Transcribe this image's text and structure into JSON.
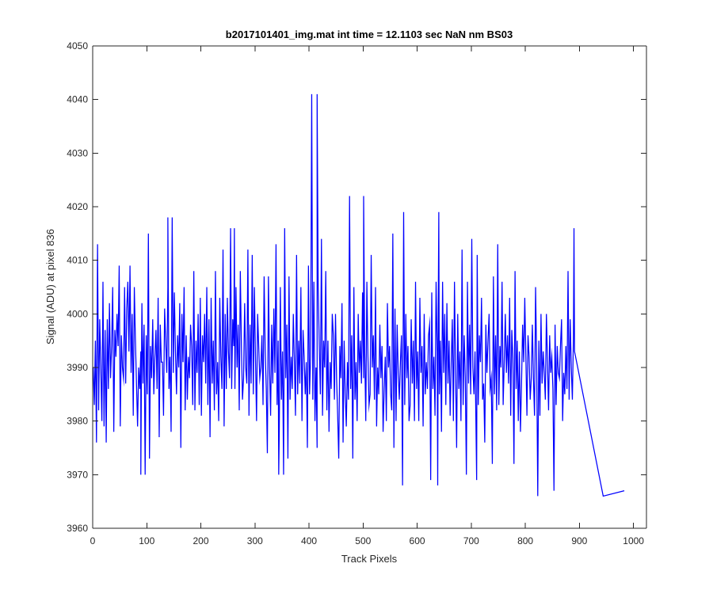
{
  "chart_data": {
    "type": "line",
    "title": "b2017101401_img.mat int time = 12.1103 sec  NaN nm BS03",
    "xlabel": "Track Pixels",
    "ylabel": "Signal (ADU) at pixel 836",
    "xlim": [
      0,
      1024
    ],
    "ylim": [
      3960,
      4050
    ],
    "xticks": [
      0,
      100,
      200,
      300,
      400,
      500,
      600,
      700,
      800,
      900,
      1000
    ],
    "yticks": [
      3960,
      3970,
      3980,
      3990,
      4000,
      4010,
      4020,
      4030,
      4040,
      4050
    ],
    "grid": false,
    "legend": "none",
    "series": [
      {
        "color": "#0000ff",
        "x_start": 1,
        "x_step": 2,
        "values": [
          3990,
          3983,
          3995,
          3976,
          4013,
          3982,
          3999,
          3990,
          3980,
          4006,
          3979,
          3997,
          3976,
          3999,
          3986,
          4002,
          3988,
          3994,
          4005,
          3978,
          3997,
          3992,
          4000,
          3994,
          4009,
          3979,
          3996,
          3990,
          3988,
          4005,
          3987,
          4001,
          4006,
          3993,
          4009,
          3989,
          4000,
          3981,
          4005,
          3995,
          3987,
          3979,
          3990,
          3986,
          3993,
          4002,
          3987,
          3998,
          3970,
          3996,
          3985,
          4015,
          3973,
          3994,
          3988,
          3999,
          3985,
          3992,
          3997,
          3986,
          4003,
          3977,
          3998,
          3991,
          3991,
          3981,
          4001,
          3995,
          3989,
          4005,
          3986,
          3992,
          3978,
          4018,
          3989,
          4004,
          3993,
          3985,
          3996,
          3990,
          4002,
          3975,
          4000,
          3991,
          4005,
          3982,
          3996,
          3984,
          3992,
          3988,
          3998,
          3994,
          3983,
          4008,
          3982,
          3995,
          3989,
          4000,
          3983,
          4003,
          3981,
          3996,
          3991,
          4000,
          3987,
          4005,
          3983,
          3999,
          3977,
          4003,
          3987,
          3995,
          3982,
          4008,
          3985,
          3991,
          3980,
          4003,
          3992,
          3986,
          4012,
          3979,
          4000,
          3986,
          4003,
          3993,
          3988,
          4016,
          3986,
          3999,
          3994,
          3986,
          4005,
          3990,
          3998,
          3982,
          4008,
          3994,
          3984,
          3988,
          4002,
          3990,
          3987,
          4012,
          3981,
          3998,
          3987,
          4011,
          3985,
          4005,
          3992,
          3980,
          4000,
          3994,
          3988,
          3990,
          3996,
          3983,
          4007,
          3993,
          3986,
          3974,
          4007,
          3990,
          3981,
          3998,
          3987,
          4001,
          3989,
          4013,
          3983,
          3995,
          3978,
          4005,
          3984,
          3993,
          3970,
          4016,
          3988,
          3998,
          3973,
          4007,
          3984,
          3992,
          3986,
          4000,
          3991,
          3981,
          4011,
          3985,
          3995,
          3987,
          4005,
          3980,
          3997,
          3992,
          3985,
          3991,
          3975,
          4009,
          3985,
          3992,
          4041,
          3984,
          4006,
          3980,
          3990,
          3975,
          4005,
          3994,
          3985,
          4014,
          3981,
          3995,
          3990,
          4008,
          3982,
          3995,
          3978,
          3991,
          3986,
          4000,
          3996,
          3984,
          4000,
          3988,
          3981,
          3973,
          3994,
          3988,
          4002,
          3976,
          3995,
          3985,
          3979,
          3991,
          3984,
          4022,
          3986,
          3996,
          3973,
          4005,
          3984,
          3991,
          3980,
          4000,
          3989,
          3995,
          3987,
          4004,
          3988,
          3993,
          3980,
          4006,
          3992,
          3983,
          3985,
          4011,
          3990,
          3996,
          3984,
          4005,
          3979,
          3990,
          3985,
          3998,
          3988,
          3994,
          3978,
          3986,
          3992,
          3980,
          4002,
          3990,
          3994,
          3985,
          3982,
          4015,
          3975,
          4001,
          3980,
          3998,
          3989,
          3984,
          3991,
          3996,
          3968,
          4019,
          3983,
          4000,
          3988,
          3994,
          3980,
          3983,
          3999,
          3987,
          3995,
          3980,
          4006,
          3986,
          3993,
          3980,
          4003,
          3989,
          3994,
          3979,
          4000,
          3985,
          3991,
          3986,
          3996,
          3998,
          3969,
          4004,
          3986,
          3992,
          3981,
          4006,
          3993,
          4001,
          3985,
          3995,
          3978,
          4006,
          3989,
          4000,
          3983,
          4002,
          3987,
          3995,
          3981,
          3991,
          3999,
          3980,
          4006,
          3989,
          3975,
          4000,
          3986,
          3993,
          3980,
          4012,
          3983,
          3996,
          3988,
          3970,
          4006,
          3987,
          3998,
          3985,
          4014,
          3990,
          3985,
          3993,
          3977,
          4011,
          3983,
          3996,
          3991,
          4003,
          3984,
          3987,
          3976,
          3998,
          3989,
          3995,
          4000,
          3986,
          3988,
          3972,
          4007,
          3985,
          3996,
          3982,
          4013,
          3983,
          3994,
          3990,
          4006,
          3983,
          3991,
          4000,
          3989,
          3996,
          3987,
          4003,
          3981,
          3997,
          3992,
          3972,
          4008,
          3986,
          3995,
          3980,
          3993,
          3978,
          3987,
          3998,
          3991,
          4003,
          3992,
          3981,
          3996,
          3992,
          3984,
          3988,
          3998,
          3988,
          3981,
          4005,
          3991,
          3966,
          3995,
          3981,
          4000,
          3987,
          3993,
          3989,
          3984,
          4000,
          3991,
          3982,
          3996,
          3989,
          3992,
          3986,
          3967,
          3998,
          3983,
          3994,
          3989,
          3988,
          3994,
          3999,
          3980,
          3989,
          3985,
          3994,
          3986,
          4008,
          3984,
          3999,
          3990,
          3984,
          3996,
          3993
        ],
        "peaks": [
          {
            "x": 415,
            "y": 4041
          },
          {
            "x": 501,
            "y": 4022
          },
          {
            "x": 640,
            "y": 4019
          },
          {
            "x": 139,
            "y": 4018
          },
          {
            "x": 890,
            "y": 4016
          },
          {
            "x": 262,
            "y": 4016
          },
          {
            "x": 944,
            "y": 3966
          },
          {
            "x": 983,
            "y": 3967
          },
          {
            "x": 638,
            "y": 3968
          },
          {
            "x": 710,
            "y": 3969
          },
          {
            "x": 89,
            "y": 3970
          },
          {
            "x": 344,
            "y": 3970
          }
        ]
      }
    ]
  }
}
